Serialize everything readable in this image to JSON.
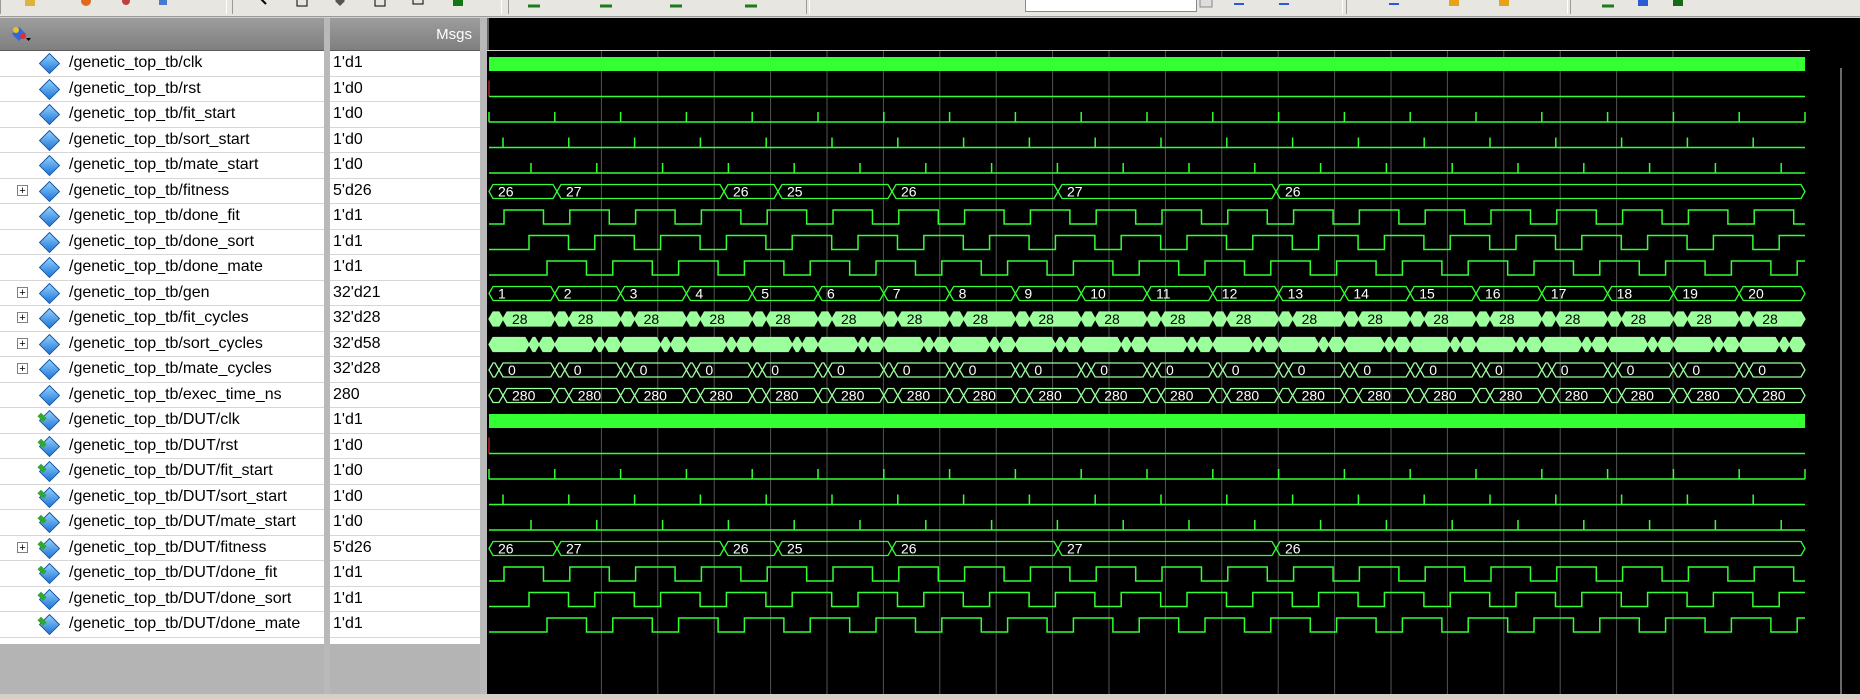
{
  "header": {
    "msgs_label": "Msgs"
  },
  "signals": [
    {
      "name": "/genetic_top_tb/clk",
      "value": "1'd1",
      "expandable": false,
      "dut": false,
      "wave": "clk"
    },
    {
      "name": "/genetic_top_tb/rst",
      "value": "1'd0",
      "expandable": false,
      "dut": false,
      "wave": "low"
    },
    {
      "name": "/genetic_top_tb/fit_start",
      "value": "1'd0",
      "expandable": false,
      "dut": false,
      "wave": "pulse0"
    },
    {
      "name": "/genetic_top_tb/sort_start",
      "value": "1'd0",
      "expandable": false,
      "dut": false,
      "wave": "pulse1"
    },
    {
      "name": "/genetic_top_tb/mate_start",
      "value": "1'd0",
      "expandable": false,
      "dut": false,
      "wave": "pulse2"
    },
    {
      "name": "/genetic_top_tb/fitness",
      "value": "5'd26",
      "expandable": true,
      "dut": false,
      "wave": "fitness"
    },
    {
      "name": "/genetic_top_tb/done_fit",
      "value": "1'd1",
      "expandable": false,
      "dut": false,
      "wave": "done0"
    },
    {
      "name": "/genetic_top_tb/done_sort",
      "value": "1'd1",
      "expandable": false,
      "dut": false,
      "wave": "done1"
    },
    {
      "name": "/genetic_top_tb/done_mate",
      "value": "1'd1",
      "expandable": false,
      "dut": false,
      "wave": "done2"
    },
    {
      "name": "/genetic_top_tb/gen",
      "value": "32'd21",
      "expandable": true,
      "dut": false,
      "wave": "gen"
    },
    {
      "name": "/genetic_top_tb/fit_cycles",
      "value": "32'd28",
      "expandable": true,
      "dut": false,
      "wave": "fitcycles"
    },
    {
      "name": "/genetic_top_tb/sort_cycles",
      "value": "32'd58",
      "expandable": true,
      "dut": false,
      "wave": "sortcycles"
    },
    {
      "name": "/genetic_top_tb/mate_cycles",
      "value": "32'd28",
      "expandable": true,
      "dut": false,
      "wave": "matecycles"
    },
    {
      "name": "/genetic_top_tb/exec_time_ns",
      "value": "280",
      "expandable": false,
      "dut": false,
      "wave": "exectime"
    },
    {
      "name": "/genetic_top_tb/DUT/clk",
      "value": "1'd1",
      "expandable": false,
      "dut": true,
      "wave": "clk"
    },
    {
      "name": "/genetic_top_tb/DUT/rst",
      "value": "1'd0",
      "expandable": false,
      "dut": true,
      "wave": "low"
    },
    {
      "name": "/genetic_top_tb/DUT/fit_start",
      "value": "1'd0",
      "expandable": false,
      "dut": true,
      "wave": "pulse0"
    },
    {
      "name": "/genetic_top_tb/DUT/sort_start",
      "value": "1'd0",
      "expandable": false,
      "dut": true,
      "wave": "pulse1"
    },
    {
      "name": "/genetic_top_tb/DUT/mate_start",
      "value": "1'd0",
      "expandable": false,
      "dut": true,
      "wave": "pulse2"
    },
    {
      "name": "/genetic_top_tb/DUT/fitness",
      "value": "5'd26",
      "expandable": true,
      "dut": true,
      "wave": "fitness"
    },
    {
      "name": "/genetic_top_tb/DUT/done_fit",
      "value": "1'd1",
      "expandable": false,
      "dut": true,
      "wave": "done0"
    },
    {
      "name": "/genetic_top_tb/DUT/done_sort",
      "value": "1'd1",
      "expandable": false,
      "dut": true,
      "wave": "done1"
    },
    {
      "name": "/genetic_top_tb/DUT/done_mate",
      "value": "1'd1",
      "expandable": false,
      "dut": true,
      "wave": "done2"
    }
  ],
  "waves": {
    "fitness_values": [
      "26",
      "27",
      "26",
      "25",
      "26",
      "27",
      "26"
    ],
    "gen_values": [
      "1",
      "2",
      "3",
      "4",
      "5",
      "6",
      "7",
      "8",
      "9",
      "10",
      "11",
      "12",
      "13",
      "14",
      "15",
      "16",
      "17",
      "18",
      "19",
      "20"
    ],
    "fit_cycles_value": "28",
    "mate_cycles_value": "0",
    "exec_time_value": "280"
  },
  "colors": {
    "wave": "#33ff33",
    "bus": "#9bff9b",
    "grid": "#8a8a8a",
    "background": "#000000"
  }
}
